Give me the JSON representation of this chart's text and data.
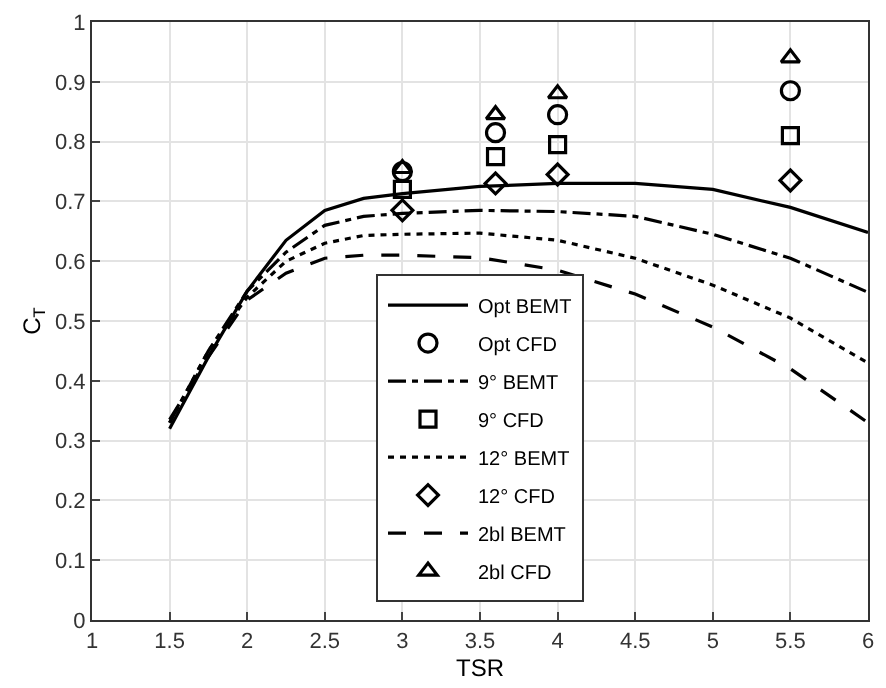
{
  "chart_data": {
    "type": "line",
    "xlabel": "TSR",
    "ylabel": "C$_{T}$",
    "xlim": [
      1,
      6
    ],
    "xticks": [
      1,
      1.5,
      2,
      2.5,
      3,
      3.5,
      4,
      4.5,
      5,
      5.5,
      6
    ],
    "ylim": [
      0,
      1
    ],
    "yticks": [
      0,
      0.1,
      0.2,
      0.3,
      0.4,
      0.5,
      0.6,
      0.7,
      0.8,
      0.9,
      1
    ],
    "grid": true,
    "legend": "bottom",
    "series": [
      {
        "name": "Opt BEMT",
        "line_style": "solid",
        "marker": "none",
        "color": "#000000",
        "x": [
          1.5,
          1.75,
          2,
          2.25,
          2.5,
          2.75,
          3,
          3.5,
          4,
          4.5,
          5,
          5.5,
          6
        ],
        "values": [
          0.32,
          0.44,
          0.55,
          0.635,
          0.685,
          0.705,
          0.713,
          0.725,
          0.73,
          0.73,
          0.72,
          0.69,
          0.648
        ]
      },
      {
        "name": "Opt CFD",
        "type": "scatter",
        "marker": "circle",
        "color": "#000000",
        "x": [
          3,
          3.6,
          4,
          5.5
        ],
        "values": [
          0.75,
          0.815,
          0.845,
          0.885
        ]
      },
      {
        "name": "9° BEMT",
        "line_style": "dashdot",
        "marker": "none",
        "color": "#000000",
        "x": [
          1.5,
          1.75,
          2,
          2.25,
          2.5,
          2.75,
          3,
          3.5,
          4,
          4.5,
          5,
          5.5,
          6
        ],
        "values": [
          0.33,
          0.45,
          0.55,
          0.615,
          0.66,
          0.675,
          0.68,
          0.685,
          0.683,
          0.675,
          0.645,
          0.605,
          0.548
        ]
      },
      {
        "name": "9° CFD",
        "type": "scatter",
        "marker": "square",
        "color": "#000000",
        "x": [
          3,
          3.6,
          4,
          5.5
        ],
        "values": [
          0.72,
          0.775,
          0.795,
          0.81
        ]
      },
      {
        "name": "12° BEMT",
        "line_style": "dotted",
        "marker": "none",
        "color": "#000000",
        "x": [
          1.5,
          1.75,
          2,
          2.25,
          2.5,
          2.75,
          3,
          3.5,
          4,
          4.5,
          5,
          5.5,
          6
        ],
        "values": [
          0.33,
          0.45,
          0.54,
          0.6,
          0.63,
          0.643,
          0.645,
          0.647,
          0.635,
          0.605,
          0.56,
          0.505,
          0.43
        ]
      },
      {
        "name": "12° CFD",
        "type": "scatter",
        "marker": "diamond",
        "color": "#000000",
        "x": [
          3,
          3.6,
          4,
          5.5
        ],
        "values": [
          0.685,
          0.73,
          0.745,
          0.735
        ]
      },
      {
        "name": "2bl BEMT",
        "line_style": "dashed",
        "marker": "none",
        "color": "#000000",
        "x": [
          1.5,
          1.75,
          2,
          2.25,
          2.5,
          2.75,
          3,
          3.5,
          4,
          4.5,
          5,
          5.5,
          6
        ],
        "values": [
          0.335,
          0.44,
          0.535,
          0.58,
          0.605,
          0.61,
          0.61,
          0.606,
          0.585,
          0.545,
          0.49,
          0.42,
          0.33
        ]
      },
      {
        "name": "2bl CFD",
        "type": "scatter",
        "marker": "triangle",
        "color": "#000000",
        "x": [
          3,
          3.6,
          4,
          5.5
        ],
        "values": [
          0.755,
          0.845,
          0.88,
          0.94
        ]
      }
    ]
  }
}
